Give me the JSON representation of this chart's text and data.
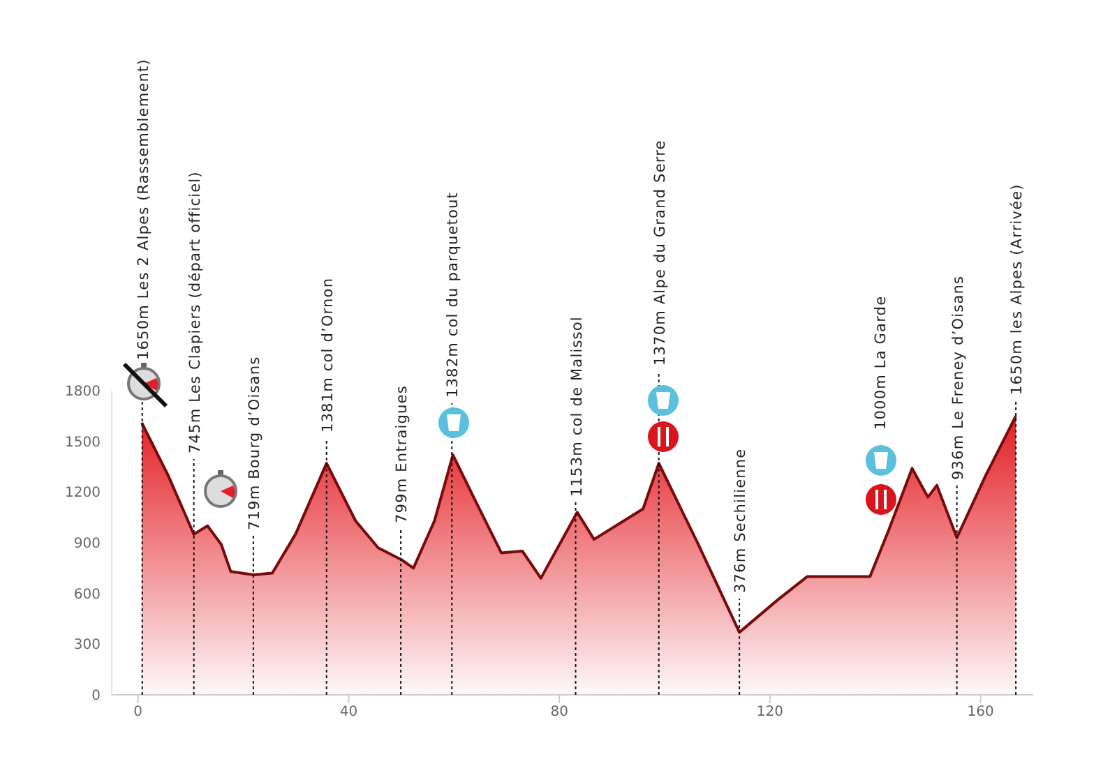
{
  "chart_data": {
    "type": "area",
    "color": "#e31e24",
    "x": [
      0.7,
      5.7,
      10.6,
      13.2,
      15.8,
      17.6,
      22,
      25.5,
      29.9,
      35.8,
      41.3,
      45.6,
      50,
      52.3,
      56.3,
      59.8,
      64.2,
      69,
      73,
      76.5,
      83.4,
      86.6,
      95.9,
      98.9,
      106.4,
      114.2,
      121.4,
      127.1,
      139,
      142.5,
      147,
      150,
      151.7,
      155.5,
      161,
      166.7
    ],
    "values": [
      1610,
      1300,
      950,
      1000,
      890,
      730,
      710,
      720,
      950,
      1370,
      1030,
      870,
      800,
      750,
      1030,
      1420,
      1140,
      840,
      850,
      690,
      1080,
      920,
      1100,
      1370,
      890,
      370,
      560,
      700,
      700,
      970,
      1340,
      1170,
      1240,
      930,
      1300,
      1650
    ],
    "xlim": [
      -5,
      170
    ],
    "xticks": [
      0,
      40,
      80,
      120,
      160
    ],
    "ylim": [
      0,
      1800
    ],
    "yticks": [
      0,
      300,
      600,
      900,
      1200,
      1500,
      1800
    ],
    "ref_lines": [
      {
        "axis": "x",
        "value": 0.8,
        "label": "1650m Les 2 Alpes (Rassemblement)",
        "color": "#111111",
        "line_style": "dotted"
      },
      {
        "axis": "x",
        "value": 10.6,
        "label": "745m Les Clapiers (départ officiel)",
        "color": "#111111",
        "line_style": "dotted"
      },
      {
        "axis": "x",
        "value": 21.9,
        "label": "719m Bourg d’Oisans",
        "color": "#111111",
        "line_style": "dotted"
      },
      {
        "axis": "x",
        "value": 35.8,
        "label": "1381m col d’Ornon",
        "color": "#111111",
        "line_style": "dotted"
      },
      {
        "axis": "x",
        "value": 49.9,
        "label": "799m Entraigues",
        "color": "#111111",
        "line_style": "dotted"
      },
      {
        "axis": "x",
        "value": 59.6,
        "label": "1382m col du parquetout",
        "color": "#111111",
        "line_style": "dotted"
      },
      {
        "axis": "x",
        "value": 83.1,
        "label": "1153m col de Malissol",
        "color": "#111111",
        "line_style": "dotted"
      },
      {
        "axis": "x",
        "value": 98.9,
        "label": "1370m Alpe du Grand Serre",
        "color": "#111111",
        "line_style": "dotted"
      },
      {
        "axis": "x",
        "value": 114.2,
        "label": "376m Sechilienne",
        "color": "#111111",
        "line_style": "dotted"
      },
      {
        "axis": "x",
        "value": 155.5,
        "label": "936m Le Freney d’Oisans",
        "color": "#111111",
        "line_style": "dotted"
      },
      {
        "axis": "x",
        "value": 166.7,
        "label": "1650m les Alpes (Arrivée)",
        "color": "#111111",
        "line_style": "dotted"
      }
    ],
    "annotations": [
      "1000m La Garde"
    ]
  }
}
